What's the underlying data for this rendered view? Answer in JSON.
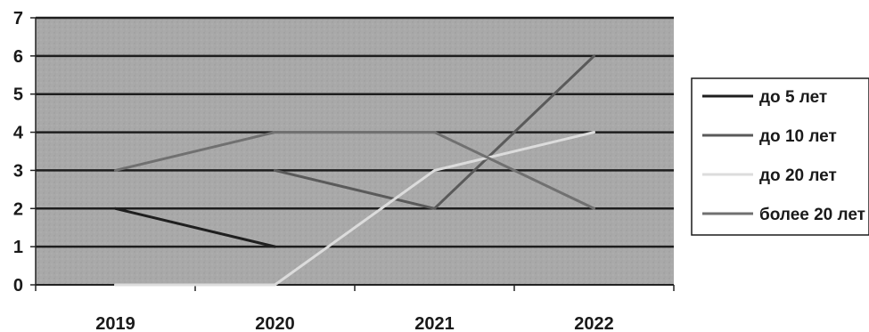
{
  "chart_data": {
    "type": "line",
    "categories": [
      "2019",
      "2020",
      "2021",
      "2022"
    ],
    "y_ticks": [
      "0",
      "1",
      "2",
      "3",
      "4",
      "5",
      "6",
      "7"
    ],
    "ylim": [
      0,
      7
    ],
    "grid": true,
    "legend_position": "right",
    "series": [
      {
        "name": "до 5 лет",
        "color": "#1f1f1f",
        "values": [
          2,
          1,
          null,
          null
        ]
      },
      {
        "name": "до 10 лет",
        "color": "#5a5a5a",
        "values": [
          null,
          3,
          2,
          6
        ]
      },
      {
        "name": "до 20 лет",
        "color": "#dcdcdc",
        "values": [
          0,
          0,
          3,
          4
        ]
      },
      {
        "name": "более 20 лет",
        "color": "#707070",
        "values": [
          3,
          4,
          4,
          2
        ]
      }
    ],
    "colors": {
      "plot_background": "#a9a9a9",
      "gridline": "#1e1e1e",
      "axis": "#222222"
    }
  }
}
